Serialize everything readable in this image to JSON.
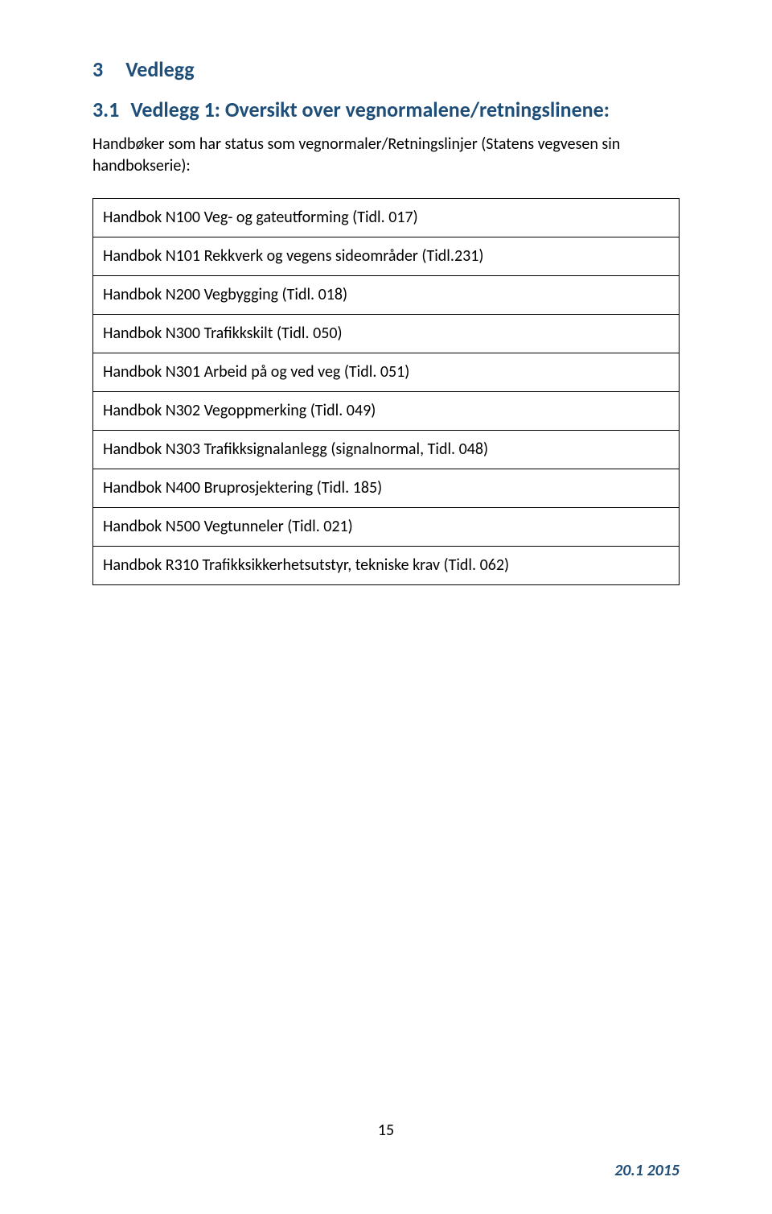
{
  "colors": {
    "heading": "#1f4e79",
    "text": "#000000",
    "border": "#000000",
    "background": "#ffffff"
  },
  "typography": {
    "heading_fontsize_pt": 14,
    "body_fontsize_pt": 11,
    "font_family": "Calibri"
  },
  "headings": {
    "h1": {
      "num": "3",
      "text": "Vedlegg"
    },
    "h2": {
      "num": "3.1",
      "text": "Vedlegg 1: Oversikt over vegnormalene/retningslinene:"
    }
  },
  "intro": "Handbøker som har status som vegnormaler/Retningslinjer (Statens vegvesen sin handbokserie):",
  "table": {
    "rows": [
      "Handbok N100 Veg- og gateutforming (Tidl. 017)",
      "Handbok N101 Rekkverk og vegens sideområder (Tidl.231)",
      "Handbok N200 Vegbygging (Tidl. 018)",
      "Handbok N300 Trafikkskilt (Tidl. 050)",
      "Handbok N301 Arbeid på og ved veg (Tidl. 051)",
      "Handbok N302 Vegoppmerking (Tidl. 049)",
      "Handbok N303 Trafikksignalanlegg (signalnormal, Tidl. 048)",
      "Handbok N400 Bruprosjektering (Tidl. 185)",
      "Handbok N500 Vegtunneler (Tidl. 021)",
      "Handbok R310 Trafikksikkerhetsutstyr, tekniske krav (Tidl. 062)"
    ]
  },
  "page_number": "15",
  "footer_right": "20.1 2015"
}
